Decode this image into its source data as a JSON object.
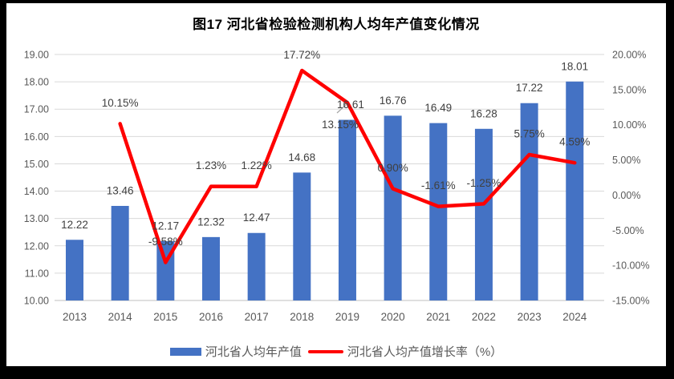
{
  "title": "图17 河北省检验检测机构人均年产值变化情况",
  "legend": {
    "bar_label": "河北省人均年产值",
    "line_label": "河北省人均产值增长率（%）"
  },
  "colors": {
    "bar": "#4472C4",
    "line": "#FF0000",
    "grid": "#D9D9D9",
    "axis_line": "#BFBFBF",
    "axis_text": "#595959",
    "label_text": "#404040",
    "leader": "#A6A6A6",
    "frame": "#000000",
    "background": "#FFFFFF"
  },
  "chart_data": {
    "type": "combo-bar-line",
    "title": "图17 河北省检验检测机构人均年产值变化情况",
    "categories": [
      "2013",
      "2014",
      "2015",
      "2016",
      "2017",
      "2018",
      "2019",
      "2020",
      "2021",
      "2022",
      "2023",
      "2024"
    ],
    "series": [
      {
        "name": "河北省人均年产值",
        "type": "bar",
        "axis": "left",
        "color": "#4472C4",
        "values": [
          12.22,
          13.46,
          12.17,
          12.32,
          12.47,
          14.68,
          16.61,
          16.76,
          16.49,
          16.28,
          17.22,
          18.01
        ],
        "data_labels": [
          "12.22",
          "13.46",
          "12.17",
          "12.32",
          "12.47",
          "14.68",
          "16.61",
          "16.76",
          "16.49",
          "16.28",
          "17.22",
          "18.01"
        ]
      },
      {
        "name": "河北省人均产值增长率（%）",
        "type": "line",
        "axis": "right",
        "color": "#FF0000",
        "values": [
          null,
          10.15,
          -9.58,
          1.23,
          1.22,
          17.72,
          13.15,
          0.9,
          -1.61,
          -1.25,
          5.75,
          4.59
        ],
        "data_labels": [
          "",
          "10.15%",
          "-9.58%",
          "1.23%",
          "1.22%",
          "17.72%",
          "13.15%",
          "0.90%",
          "-1.61%",
          "-1.25%",
          "5.75%",
          "4.59%"
        ]
      }
    ],
    "left_axis": {
      "min": 10.0,
      "max": 19.0,
      "step": 1.0,
      "tick_labels": [
        "19.00",
        "18.00",
        "17.00",
        "16.00",
        "15.00",
        "14.00",
        "13.00",
        "12.00",
        "11.00",
        "10.00"
      ]
    },
    "right_axis": {
      "min": -15,
      "max": 20,
      "step": 5,
      "tick_labels": [
        "20.00%",
        "15.00%",
        "10.00%",
        "5.00%",
        "0.00%",
        "-5.00%",
        "-10.00%",
        "-15.00%"
      ]
    },
    "grid": true,
    "legend_position": "bottom"
  }
}
